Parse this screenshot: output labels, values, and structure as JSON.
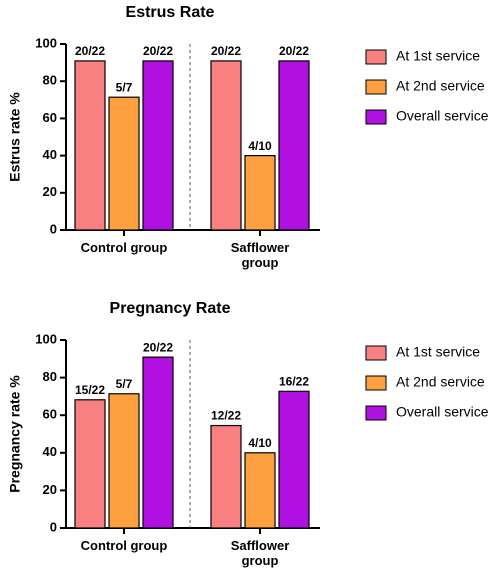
{
  "chart_data": [
    {
      "type": "bar",
      "title": "Estrus Rate",
      "y_label": "Estrus rate %",
      "categories": [
        "Control group",
        "Safflower group"
      ],
      "series": [
        {
          "name": "At 1st service",
          "color": "#f88080",
          "values": [
            90.9,
            90.9
          ],
          "value_labels": [
            "20/22",
            "20/22"
          ]
        },
        {
          "name": "At 2nd service",
          "color": "#ffa040",
          "values": [
            71.4,
            40
          ],
          "value_labels": [
            "5/7",
            "4/10"
          ]
        },
        {
          "name": "Overall service",
          "color": "#b010e0",
          "values": [
            90.9,
            90.9
          ],
          "value_labels": [
            "20/22",
            "20/22"
          ]
        }
      ],
      "ylim": [
        0,
        100
      ],
      "yticks": [
        0,
        20,
        40,
        60,
        80,
        100
      ]
    },
    {
      "type": "bar",
      "title": "Pregnancy Rate",
      "y_label": "Pregnancy rate %",
      "categories": [
        "Control group",
        "Safflower group"
      ],
      "series": [
        {
          "name": "At 1st service",
          "color": "#f88080",
          "values": [
            68.2,
            54.5
          ],
          "value_labels": [
            "15/22",
            "12/22"
          ]
        },
        {
          "name": "At 2nd service",
          "color": "#ffa040",
          "values": [
            71.4,
            40
          ],
          "value_labels": [
            "5/7",
            "4/10"
          ]
        },
        {
          "name": "Overall service",
          "color": "#b010e0",
          "values": [
            90.9,
            72.7
          ],
          "value_labels": [
            "20/22",
            "16/22"
          ]
        }
      ],
      "ylim": [
        0,
        100
      ],
      "yticks": [
        0,
        20,
        40,
        60,
        80,
        100
      ]
    }
  ]
}
